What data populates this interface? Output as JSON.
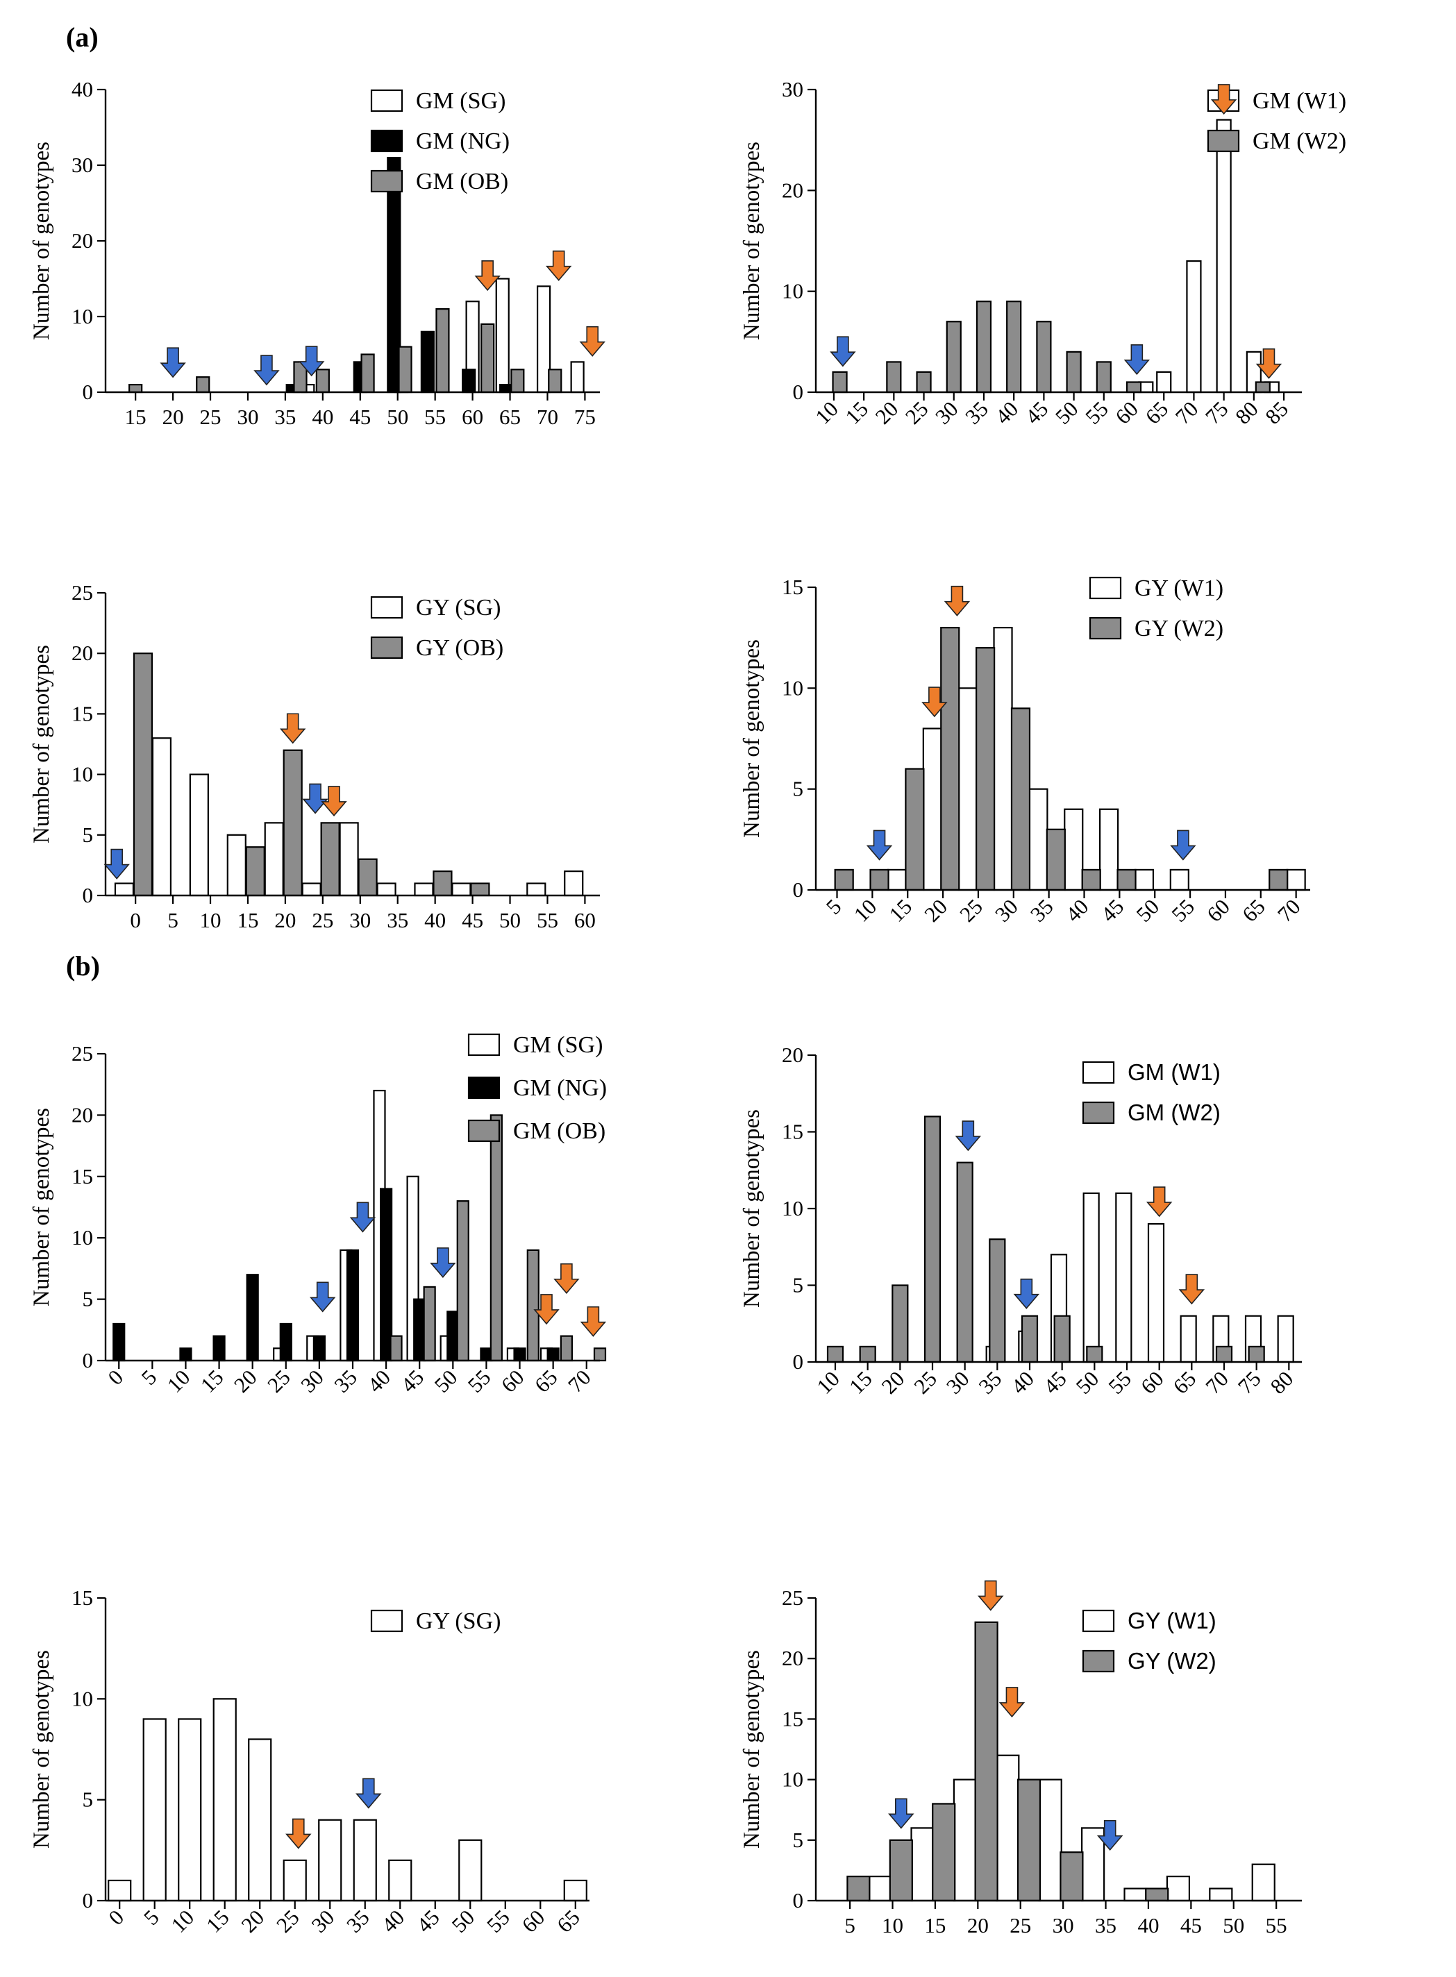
{
  "figure_labels": {
    "a": "(a)",
    "b": "(b)"
  },
  "colors": {
    "white": "#ffffff",
    "black": "#000000",
    "gray": "#8c8c8c",
    "arrow_blue": "#3b6fcf",
    "arrow_orange": "#ee7d2b"
  },
  "chart_data": [
    {
      "id": "a-gm-left",
      "type": "bar",
      "ylabel": "Number of genotypes",
      "x_ticks": [
        15,
        20,
        25,
        30,
        35,
        40,
        45,
        50,
        55,
        60,
        65,
        70,
        75
      ],
      "x_range": [
        11,
        77
      ],
      "rotate_ticks": false,
      "y_ticks": [
        0,
        10,
        20,
        30,
        40
      ],
      "ylim": [
        0,
        40
      ],
      "series": [
        {
          "name": "GM (SG)",
          "color": "#ffffff",
          "x": [
            38,
            50.5,
            60,
            64,
            69.5,
            74
          ],
          "values": [
            1,
            2,
            12,
            15,
            14,
            4
          ]
        },
        {
          "name": "GM (NG)",
          "color": "#000000",
          "x": [
            36,
            45,
            49.5,
            54,
            59.5,
            64.5
          ],
          "values": [
            1,
            4,
            31,
            8,
            3,
            1
          ]
        },
        {
          "name": "GM (OB)",
          "color": "#8c8c8c",
          "x": [
            15,
            24,
            37,
            40,
            46,
            51,
            56,
            62,
            66,
            71
          ],
          "values": [
            1,
            2,
            4,
            3,
            5,
            6,
            11,
            9,
            3,
            3
          ]
        }
      ],
      "arrows": [
        {
          "x": 20,
          "y": 2,
          "color": "blue"
        },
        {
          "x": 32.5,
          "y": 1,
          "color": "blue"
        },
        {
          "x": 38.5,
          "y": 2.2,
          "color": "blue"
        },
        {
          "x": 62,
          "y": 13.5,
          "color": "orange"
        },
        {
          "x": 71.5,
          "y": 14.8,
          "color": "orange"
        },
        {
          "x": 76,
          "y": 4.8,
          "color": "orange"
        }
      ]
    },
    {
      "id": "a-gm-right",
      "type": "bar",
      "ylabel": "Number of genotypes",
      "x_ticks": [
        10,
        15,
        20,
        25,
        30,
        35,
        40,
        45,
        50,
        55,
        60,
        65,
        70,
        75,
        80,
        85
      ],
      "x_range": [
        7,
        88
      ],
      "rotate_ticks": true,
      "y_ticks": [
        0,
        10,
        20,
        30
      ],
      "ylim": [
        0,
        30
      ],
      "series": [
        {
          "name": "GM (W1)",
          "color": "#ffffff",
          "x": [
            62,
            65,
            70,
            75,
            80,
            83
          ],
          "values": [
            1,
            2,
            13,
            27,
            4,
            1
          ]
        },
        {
          "name": "GM (W2)",
          "color": "#8c8c8c",
          "x": [
            11,
            20,
            25,
            30,
            35,
            40,
            45,
            50,
            55,
            60,
            81.5
          ],
          "values": [
            2,
            3,
            2,
            7,
            9,
            9,
            7,
            4,
            3,
            1,
            1
          ]
        }
      ],
      "arrows": [
        {
          "x": 11.5,
          "y": 2.6,
          "color": "blue"
        },
        {
          "x": 60.5,
          "y": 1.8,
          "color": "blue"
        },
        {
          "x": 75,
          "y": 27.6,
          "color": "orange"
        },
        {
          "x": 82.5,
          "y": 1.4,
          "color": "orange"
        }
      ]
    },
    {
      "id": "a-gy-left",
      "type": "bar",
      "ylabel": "Number of genotypes",
      "x_ticks": [
        0,
        5,
        10,
        15,
        20,
        25,
        30,
        35,
        40,
        45,
        50,
        55,
        60
      ],
      "x_range": [
        -4,
        62
      ],
      "rotate_ticks": false,
      "y_ticks": [
        0,
        5,
        10,
        15,
        20,
        25
      ],
      "ylim": [
        0,
        25
      ],
      "series": [
        {
          "name": "GY (SG)",
          "color": "#ffffff",
          "x": [
            -1.5,
            3.5,
            8.5,
            13.5,
            18.5,
            23.5,
            28.5,
            33.5,
            38.5,
            43.5,
            53.5,
            58.5
          ],
          "values": [
            1,
            13,
            10,
            5,
            6,
            1,
            6,
            1,
            1,
            1,
            1,
            2
          ]
        },
        {
          "name": "GY (OB)",
          "color": "#8c8c8c",
          "x": [
            1,
            16,
            21,
            26,
            31,
            41,
            46
          ],
          "values": [
            20,
            4,
            12,
            6,
            3,
            2,
            1
          ]
        }
      ],
      "arrows": [
        {
          "x": -2.5,
          "y": 1.4,
          "color": "blue"
        },
        {
          "x": 21,
          "y": 12.6,
          "color": "orange"
        },
        {
          "x": 24,
          "y": 6.8,
          "color": "blue"
        },
        {
          "x": 26.5,
          "y": 6.6,
          "color": "orange"
        }
      ]
    },
    {
      "id": "a-gy-right",
      "type": "bar",
      "ylabel": "Number of genotypes",
      "x_ticks": [
        5,
        10,
        15,
        20,
        25,
        30,
        35,
        40,
        45,
        50,
        55,
        60,
        65,
        70
      ],
      "x_range": [
        2,
        72
      ],
      "rotate_ticks": true,
      "y_ticks": [
        0,
        5,
        10,
        15
      ],
      "ylim": [
        0,
        15
      ],
      "series": [
        {
          "name": "GY (W1)",
          "color": "#ffffff",
          "x": [
            13.5,
            18.5,
            23.5,
            28.5,
            33.5,
            38.5,
            43.5,
            48.5,
            53.5,
            70
          ],
          "values": [
            1,
            8,
            10,
            13,
            5,
            4,
            4,
            1,
            1,
            1
          ]
        },
        {
          "name": "GY (W2)",
          "color": "#8c8c8c",
          "x": [
            6,
            11,
            16,
            21,
            26,
            31,
            36,
            41,
            46,
            67.5
          ],
          "values": [
            1,
            1,
            6,
            13,
            12,
            9,
            3,
            1,
            1,
            1
          ]
        }
      ],
      "arrows": [
        {
          "x": 11,
          "y": 1.5,
          "color": "blue"
        },
        {
          "x": 18.8,
          "y": 8.6,
          "color": "orange"
        },
        {
          "x": 22,
          "y": 13.6,
          "color": "orange"
        },
        {
          "x": 54,
          "y": 1.5,
          "color": "blue"
        }
      ]
    },
    {
      "id": "b-gm-left",
      "type": "bar",
      "ylabel": "Number of genotypes",
      "x_ticks": [
        0,
        5,
        10,
        15,
        20,
        25,
        30,
        35,
        40,
        45,
        50,
        55,
        60,
        65,
        70
      ],
      "x_range": [
        -2,
        72
      ],
      "rotate_ticks": true,
      "y_ticks": [
        0,
        5,
        10,
        15,
        20,
        25
      ],
      "ylim": [
        0,
        25
      ],
      "series": [
        {
          "name": "GM (SG)",
          "color": "#ffffff",
          "x": [
            24,
            29,
            34,
            39,
            44,
            49,
            59,
            64
          ],
          "values": [
            1,
            2,
            9,
            22,
            15,
            2,
            1,
            1
          ]
        },
        {
          "name": "GM (NG)",
          "color": "#000000",
          "x": [
            0,
            10,
            15,
            20,
            25,
            30,
            35,
            40,
            45,
            50,
            55,
            60,
            65
          ],
          "values": [
            3,
            1,
            2,
            7,
            3,
            2,
            9,
            14,
            5,
            4,
            1,
            1,
            1
          ]
        },
        {
          "name": "GM (OB)",
          "color": "#8c8c8c",
          "x": [
            41.5,
            46.5,
            51.5,
            56.5,
            62,
            67,
            72
          ],
          "values": [
            2,
            6,
            13,
            20,
            9,
            2,
            1
          ]
        }
      ],
      "arrows": [
        {
          "x": 30.5,
          "y": 4,
          "color": "blue"
        },
        {
          "x": 36.5,
          "y": 10.5,
          "color": "blue"
        },
        {
          "x": 48.5,
          "y": 6.8,
          "color": "blue"
        },
        {
          "x": 64,
          "y": 3,
          "color": "orange"
        },
        {
          "x": 67,
          "y": 5.5,
          "color": "orange"
        },
        {
          "x": 71,
          "y": 2,
          "color": "orange"
        }
      ]
    },
    {
      "id": "b-gm-right",
      "type": "bar",
      "ylabel": "Number of genotypes",
      "x_ticks": [
        10,
        15,
        20,
        25,
        30,
        35,
        40,
        45,
        50,
        55,
        60,
        65,
        70,
        75,
        80
      ],
      "x_range": [
        7,
        82
      ],
      "rotate_ticks": true,
      "y_ticks": [
        0,
        5,
        10,
        15,
        20
      ],
      "ylim": [
        0,
        20
      ],
      "series": [
        {
          "name": "GM (W1)",
          "color": "#ffffff",
          "x": [
            34.5,
            39.5,
            44.5,
            49.5,
            54.5,
            59.5,
            64.5,
            69.5,
            74.5,
            79.5
          ],
          "values": [
            1,
            2,
            7,
            11,
            11,
            9,
            3,
            3,
            3,
            3
          ]
        },
        {
          "name": "GM (W2)",
          "color": "#8c8c8c",
          "x": [
            10,
            15,
            20,
            25,
            30,
            35,
            40,
            45,
            50,
            70,
            75
          ],
          "values": [
            1,
            1,
            5,
            16,
            13,
            8,
            3,
            3,
            1,
            1,
            1
          ]
        }
      ],
      "arrows": [
        {
          "x": 30.5,
          "y": 13.8,
          "color": "blue"
        },
        {
          "x": 39.5,
          "y": 3.5,
          "color": "blue"
        },
        {
          "x": 60,
          "y": 9.5,
          "color": "orange"
        },
        {
          "x": 65,
          "y": 3.8,
          "color": "orange"
        }
      ]
    },
    {
      "id": "b-gy-left",
      "type": "bar",
      "ylabel": "Number of genotypes",
      "x_ticks": [
        0,
        5,
        10,
        15,
        20,
        25,
        30,
        35,
        40,
        45,
        50,
        55,
        60,
        65
      ],
      "x_range": [
        -2,
        67
      ],
      "rotate_ticks": true,
      "y_ticks": [
        0,
        5,
        10,
        15
      ],
      "ylim": [
        0,
        15
      ],
      "series": [
        {
          "name": "GY (SG)",
          "color": "#ffffff",
          "x": [
            0,
            5,
            10,
            15,
            20,
            25,
            30,
            35,
            40,
            50,
            65
          ],
          "values": [
            1,
            9,
            9,
            10,
            8,
            2,
            4,
            4,
            2,
            3,
            1
          ]
        }
      ],
      "arrows": [
        {
          "x": 25.5,
          "y": 2.6,
          "color": "orange"
        },
        {
          "x": 35.5,
          "y": 4.6,
          "color": "blue"
        }
      ]
    },
    {
      "id": "b-gy-right",
      "type": "bar",
      "ylabel": "Number of genotypes",
      "x_ticks": [
        5,
        10,
        15,
        20,
        25,
        30,
        35,
        40,
        45,
        50,
        55
      ],
      "x_range": [
        1,
        58
      ],
      "rotate_ticks": false,
      "y_ticks": [
        0,
        5,
        10,
        15,
        20,
        25
      ],
      "ylim": [
        0,
        25
      ],
      "series": [
        {
          "name": "GY (W1)",
          "color": "#ffffff",
          "x": [
            8.5,
            13.5,
            18.5,
            23.5,
            28.5,
            33.5,
            38.5,
            43.5,
            48.5,
            53.5
          ],
          "values": [
            2,
            6,
            10,
            12,
            10,
            6,
            1,
            2,
            1,
            3
          ]
        },
        {
          "name": "GY (W2)",
          "color": "#8c8c8c",
          "x": [
            6,
            11,
            16,
            21,
            26,
            31,
            41
          ],
          "values": [
            2,
            5,
            8,
            23,
            10,
            4,
            1
          ]
        }
      ],
      "arrows": [
        {
          "x": 11,
          "y": 6,
          "color": "blue"
        },
        {
          "x": 21.5,
          "y": 24,
          "color": "orange"
        },
        {
          "x": 24,
          "y": 15.2,
          "color": "orange"
        },
        {
          "x": 35.5,
          "y": 4.2,
          "color": "blue"
        }
      ]
    }
  ]
}
